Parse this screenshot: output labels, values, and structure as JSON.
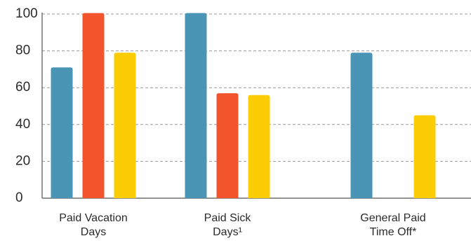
{
  "chart_data": {
    "type": "bar",
    "categories": [
      [
        "Paid Vacation",
        "Days"
      ],
      [
        "Paid Sick",
        "Days¹"
      ],
      [
        "General Paid",
        "Time Off*"
      ]
    ],
    "series": [
      {
        "values": [
          71,
          101,
          79
        ],
        "color": "#4a94b5"
      },
      {
        "values": [
          101,
          57,
          null
        ],
        "color": "#f2552c"
      },
      {
        "values": [
          79,
          56,
          45
        ],
        "color": "#fccc05"
      }
    ],
    "ylim": [
      0,
      100
    ],
    "yticks": [
      0,
      20,
      40,
      60,
      80,
      100
    ],
    "grid": true,
    "legend": "none"
  }
}
